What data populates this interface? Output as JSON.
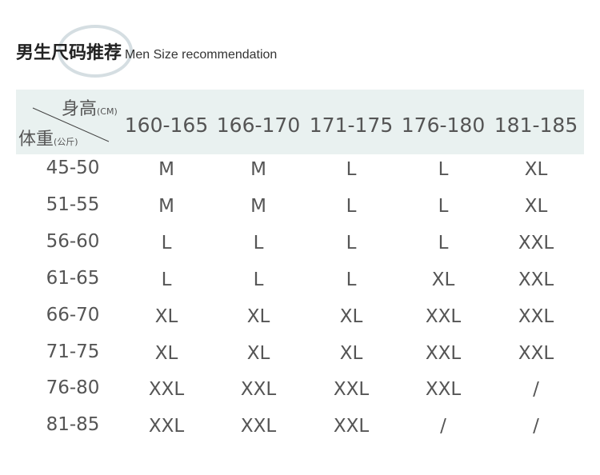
{
  "title": {
    "cn": "男生尺码推荐",
    "en": "Men Size recommendation"
  },
  "corner": {
    "height_label": "身高",
    "height_unit": "(CM)",
    "weight_label": "体重",
    "weight_unit": "(公斤)"
  },
  "columns": [
    "160-165",
    "166-170",
    "171-175",
    "176-180",
    "181-185"
  ],
  "rows": [
    {
      "weight": "45-50",
      "sizes": [
        "M",
        "M",
        "L",
        "L",
        "XL"
      ]
    },
    {
      "weight": "51-55",
      "sizes": [
        "M",
        "M",
        "L",
        "L",
        "XL"
      ]
    },
    {
      "weight": "56-60",
      "sizes": [
        "L",
        "L",
        "L",
        "L",
        "XXL"
      ]
    },
    {
      "weight": "61-65",
      "sizes": [
        "L",
        "L",
        "L",
        "XL",
        "XXL"
      ]
    },
    {
      "weight": "66-70",
      "sizes": [
        "XL",
        "XL",
        "XL",
        "XXL",
        "XXL"
      ]
    },
    {
      "weight": "71-75",
      "sizes": [
        "XL",
        "XL",
        "XL",
        "XXL",
        "XXL"
      ]
    },
    {
      "weight": "76-80",
      "sizes": [
        "XXL",
        "XXL",
        "XXL",
        "XXL",
        "/"
      ]
    },
    {
      "weight": "81-85",
      "sizes": [
        "XXL",
        "XXL",
        "XXL",
        "/",
        "/"
      ]
    }
  ],
  "colors": {
    "header_bg": "#e9f1f0",
    "text": "#555555",
    "circle": "#d5dee2"
  }
}
